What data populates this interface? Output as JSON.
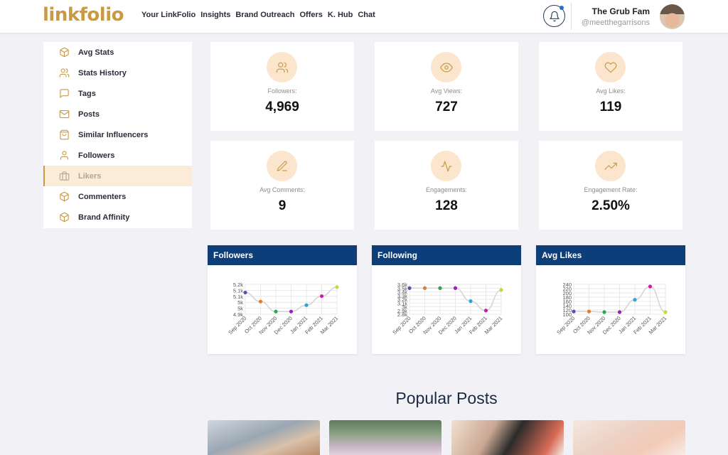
{
  "header": {
    "logo": "linkfolio",
    "nav": [
      "Your LinkFolio",
      "Insights",
      "Brand Outreach",
      "Offers",
      "K. Hub",
      "Chat"
    ],
    "user_name": "The Grub Fam",
    "user_handle": "@meetthegarrisons"
  },
  "sidebar": {
    "items": [
      {
        "label": "Avg Stats",
        "icon": "cube-icon"
      },
      {
        "label": "Stats History",
        "icon": "users-icon"
      },
      {
        "label": "Tags",
        "icon": "message-icon"
      },
      {
        "label": "Posts",
        "icon": "mail-icon"
      },
      {
        "label": "Similar Influencers",
        "icon": "bag-icon"
      },
      {
        "label": "Followers",
        "icon": "user-icon"
      },
      {
        "label": "Likers",
        "icon": "briefcase-icon"
      },
      {
        "label": "Commenters",
        "icon": "cube-icon"
      },
      {
        "label": "Brand Affinity",
        "icon": "cube-icon"
      }
    ],
    "active_index": 6
  },
  "stats": [
    {
      "label": "Followers:",
      "value": "4,969",
      "icon": "users-icon"
    },
    {
      "label": "Avg Views:",
      "value": "727",
      "icon": "eye-icon"
    },
    {
      "label": "Avg Likes:",
      "value": "119",
      "icon": "heart-icon"
    },
    {
      "label": "Avg Comments:",
      "value": "9",
      "icon": "edit-icon"
    },
    {
      "label": "Engagements:",
      "value": "128",
      "icon": "activity-icon"
    },
    {
      "label": "Engagement Rate:",
      "value": "2.50%",
      "icon": "trending-up-icon"
    }
  ],
  "colors": {
    "accent": "#c89a44",
    "accent_light": "#fbe6cd",
    "chart_header": "#0d3e7a",
    "point_colors": [
      "#5a4fb5",
      "#e37c2a",
      "#2aa84a",
      "#9b1fbf",
      "#29a9d1",
      "#c81fb2",
      "#b6e33a"
    ]
  },
  "chart_data": [
    {
      "type": "line",
      "title": "Followers",
      "categories": [
        "Sep 2020",
        "Oct 2020",
        "Nov 2020",
        "Dec 2020",
        "Jan 2021",
        "Feb 2021",
        "Mar 2021"
      ],
      "values": [
        5140,
        5040,
        4930,
        4930,
        5000,
        5100,
        5200
      ],
      "yticks": [
        "5.2k",
        "5.1k",
        "5.1k",
        "5k",
        "5k",
        "4.9k"
      ],
      "ylim": [
        4900,
        5230
      ]
    },
    {
      "type": "line",
      "title": "Following",
      "categories": [
        "Sep 2020",
        "Oct 2020",
        "Nov 2020",
        "Dec 2020",
        "Jan 2021",
        "Feb 2021",
        "Mar 2021"
      ],
      "values": [
        3500,
        3500,
        3500,
        3500,
        3150,
        2900,
        3450
      ],
      "yticks": [
        "3.6k",
        "3.5k",
        "3.4k",
        "3.3k",
        "3.2k",
        "3.1k",
        "3k",
        "2.9k",
        "2.8k"
      ],
      "ylim": [
        2800,
        3600
      ]
    },
    {
      "type": "line",
      "title": "Avg Likes",
      "categories": [
        "Sep 2020",
        "Oct 2020",
        "Nov 2020",
        "Dec 2020",
        "Jan 2021",
        "Feb 2021",
        "Mar 2021"
      ],
      "values": [
        113,
        113,
        110,
        110,
        168,
        230,
        110
      ],
      "yticks": [
        "240",
        "220",
        "200",
        "180",
        "160",
        "140",
        "120",
        "100"
      ],
      "ylim": [
        100,
        240
      ]
    }
  ],
  "popular_posts_title": "Popular Posts"
}
